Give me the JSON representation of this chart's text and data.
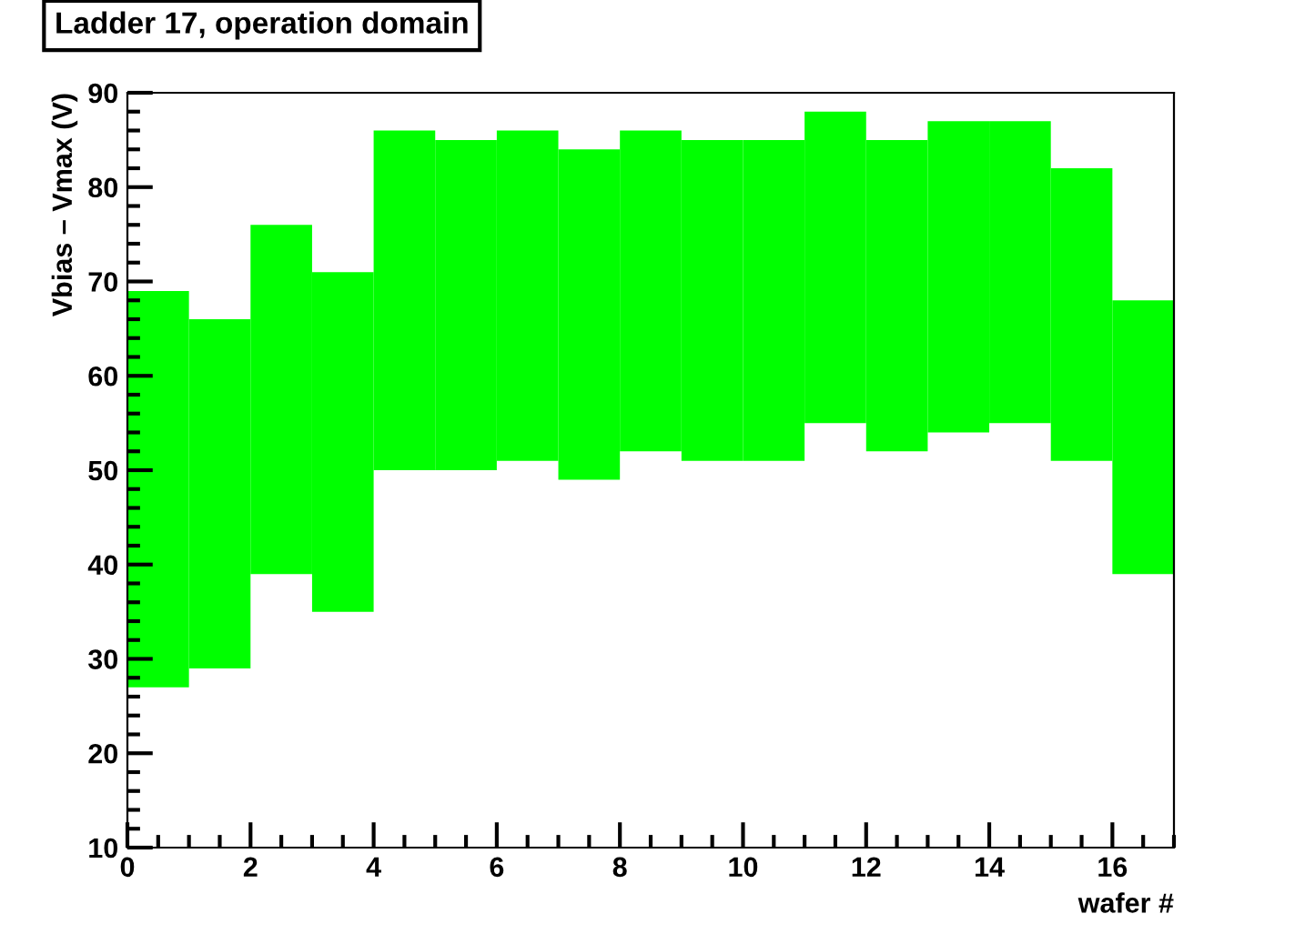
{
  "chart_data": {
    "type": "bar",
    "title": "Ladder 17, operation domain",
    "xlabel": "wafer #",
    "ylabel": "Vbias – Vmax (V)",
    "x": [
      0.5,
      1.5,
      2.5,
      3.5,
      4.5,
      5.5,
      6.5,
      7.5,
      8.5,
      9.5,
      10.5,
      11.5,
      12.5,
      13.5,
      14.5,
      15.5,
      16.5
    ],
    "base": [
      27,
      29,
      39,
      35,
      50,
      50,
      51,
      49,
      52,
      51,
      51,
      55,
      52,
      54,
      55,
      51,
      39
    ],
    "values": [
      42,
      37,
      37,
      36,
      36,
      35,
      35,
      35,
      34,
      34,
      34,
      33,
      33,
      33,
      32,
      31,
      29
    ],
    "color": "#00ff00",
    "xlim": [
      0,
      17
    ],
    "xticks": [
      0,
      2,
      4,
      6,
      8,
      10,
      12,
      14,
      16
    ],
    "ylim": [
      10,
      90
    ],
    "yticks": [
      10,
      20,
      30,
      40,
      50,
      60,
      70,
      80,
      90
    ],
    "grid": false,
    "legend": false
  }
}
